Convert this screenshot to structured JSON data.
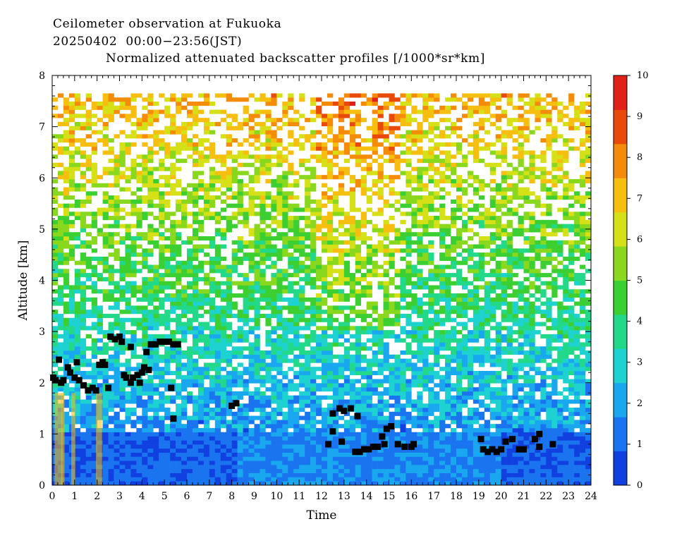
{
  "header": {
    "title_line1": "Ceilometer observation at Fukuoka",
    "title_line2": "20250402  00:00−23:56(JST)",
    "title_line3": "Normalized attenuated backscatter profiles [/1000*sr*km]"
  },
  "chart_data": {
    "type": "heatmap",
    "title": "Ceilometer observation at Fukuoka",
    "subtitle": "20250402  00:00−23:56(JST)",
    "variable": "Normalized attenuated backscatter profiles [/1000*sr*km]",
    "xlabel": "Time",
    "ylabel": "Altitude [km]",
    "xlim": [
      0,
      24
    ],
    "ylim": [
      0,
      8
    ],
    "x_ticks": [
      "0",
      "1",
      "2",
      "3",
      "4",
      "5",
      "6",
      "7",
      "8",
      "9",
      "10",
      "11",
      "12",
      "13",
      "14",
      "15",
      "16",
      "17",
      "18",
      "19",
      "20",
      "21",
      "22",
      "23",
      "24"
    ],
    "y_ticks": [
      "0",
      "1",
      "2",
      "3",
      "4",
      "5",
      "6",
      "7",
      "8"
    ],
    "data_top_altitude_km": 7.65,
    "colorbar": {
      "min": 0,
      "max": 10,
      "ticks": [
        "0",
        "1",
        "2",
        "3",
        "4",
        "5",
        "6",
        "7",
        "8",
        "9",
        "10"
      ],
      "colors": [
        "#1040e0",
        "#1a74f0",
        "#19a7f0",
        "#1dd2d0",
        "#22d98a",
        "#3ccf32",
        "#8ad81e",
        "#d6e016",
        "#f6be0e",
        "#f48c0a",
        "#e84a0a",
        "#e0201a"
      ]
    },
    "cloud_base_points_km": [
      [
        0.05,
        2.1
      ],
      [
        0.15,
        2.05
      ],
      [
        0.3,
        2.45
      ],
      [
        0.4,
        2.0
      ],
      [
        0.5,
        2.05
      ],
      [
        0.7,
        2.3
      ],
      [
        0.8,
        2.2
      ],
      [
        1.0,
        2.1
      ],
      [
        1.1,
        2.4
      ],
      [
        1.2,
        2.05
      ],
      [
        1.4,
        1.95
      ],
      [
        1.6,
        1.85
      ],
      [
        1.8,
        1.9
      ],
      [
        1.95,
        1.85
      ],
      [
        2.1,
        2.35
      ],
      [
        2.25,
        2.4
      ],
      [
        2.35,
        2.35
      ],
      [
        2.6,
        2.9
      ],
      [
        2.8,
        2.85
      ],
      [
        3.0,
        2.9
      ],
      [
        3.1,
        2.8
      ],
      [
        3.2,
        2.15
      ],
      [
        3.3,
        2.1
      ],
      [
        3.5,
        2.0
      ],
      [
        3.6,
        2.1
      ],
      [
        3.8,
        2.15
      ],
      [
        3.9,
        2.0
      ],
      [
        4.0,
        2.2
      ],
      [
        4.1,
        2.3
      ],
      [
        4.2,
        2.6
      ],
      [
        4.3,
        2.25
      ],
      [
        4.4,
        2.75
      ],
      [
        4.6,
        2.75
      ],
      [
        4.8,
        2.8
      ],
      [
        5.0,
        2.8
      ],
      [
        5.2,
        2.8
      ],
      [
        5.4,
        2.75
      ],
      [
        5.6,
        2.75
      ],
      [
        3.5,
        2.7
      ],
      [
        5.3,
        1.9
      ],
      [
        5.4,
        1.3
      ],
      [
        2.5,
        1.9
      ],
      [
        8.0,
        1.55
      ],
      [
        8.2,
        1.6
      ],
      [
        12.3,
        0.8
      ],
      [
        12.5,
        1.05
      ],
      [
        12.5,
        1.4
      ],
      [
        12.8,
        1.5
      ],
      [
        13.0,
        1.45
      ],
      [
        13.3,
        1.5
      ],
      [
        12.9,
        0.85
      ],
      [
        13.5,
        0.65
      ],
      [
        13.7,
        0.65
      ],
      [
        13.9,
        0.7
      ],
      [
        14.1,
        0.7
      ],
      [
        14.3,
        0.75
      ],
      [
        14.5,
        0.75
      ],
      [
        14.8,
        0.8
      ],
      [
        13.6,
        1.35
      ],
      [
        14.7,
        0.95
      ],
      [
        14.9,
        1.1
      ],
      [
        15.1,
        1.15
      ],
      [
        15.4,
        0.8
      ],
      [
        15.7,
        0.75
      ],
      [
        16.0,
        0.75
      ],
      [
        16.1,
        0.8
      ],
      [
        19.1,
        0.9
      ],
      [
        19.2,
        0.7
      ],
      [
        19.4,
        0.65
      ],
      [
        19.6,
        0.7
      ],
      [
        19.8,
        0.65
      ],
      [
        20.0,
        0.7
      ],
      [
        20.2,
        0.85
      ],
      [
        20.5,
        0.9
      ],
      [
        20.8,
        0.7
      ],
      [
        21.0,
        0.7
      ],
      [
        21.5,
        0.9
      ],
      [
        21.7,
        1.0
      ],
      [
        21.7,
        0.75
      ],
      [
        22.3,
        0.8
      ]
    ]
  }
}
